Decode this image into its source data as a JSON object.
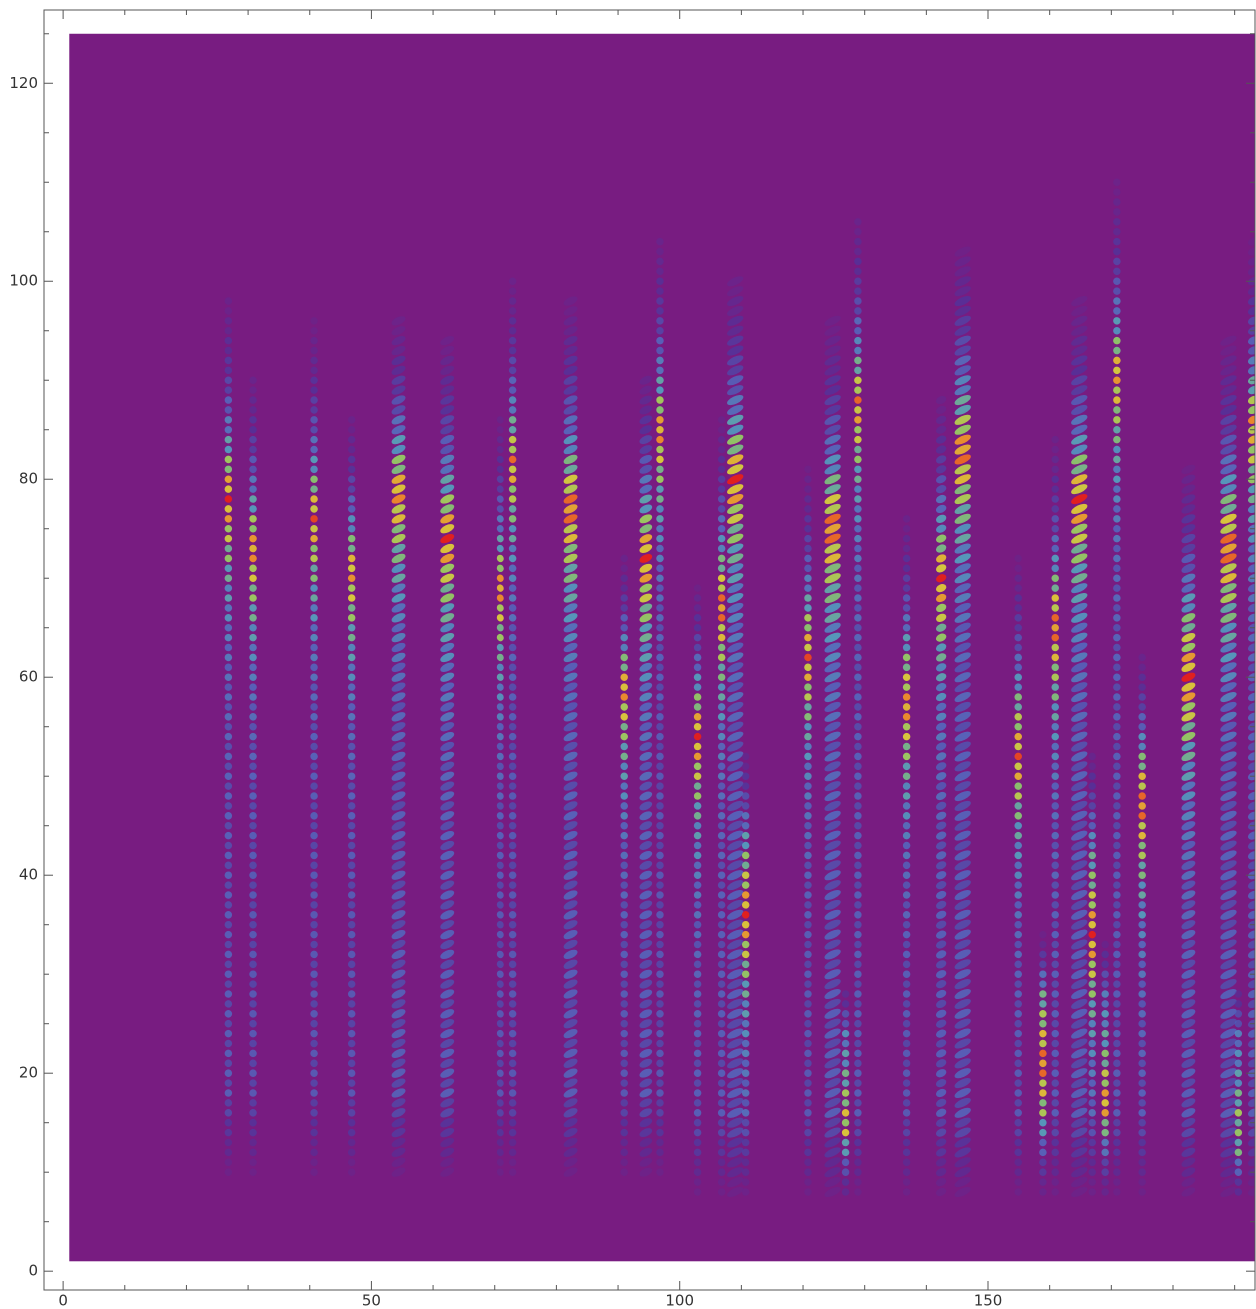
{
  "chart_data": {
    "type": "heatmap",
    "xlim": [
      -3.1,
      193.3
    ],
    "ylim": [
      -1.9,
      127.4
    ],
    "xticks": [
      0,
      50,
      100,
      150
    ],
    "yticks": [
      0,
      20,
      40,
      60,
      80,
      100,
      120
    ],
    "xminorticks": [
      10,
      20,
      30,
      40,
      60,
      70,
      80,
      90,
      110,
      120,
      130,
      140,
      160,
      170,
      180,
      190
    ],
    "yminorticks": [
      5,
      10,
      15,
      25,
      30,
      35,
      45,
      50,
      55,
      65,
      70,
      75,
      85,
      90,
      95,
      105,
      110,
      115,
      125
    ],
    "data_xrange": [
      1,
      193.3
    ],
    "data_yrange": [
      1,
      125
    ],
    "background": "#781c81",
    "colors": [
      "#781c81",
      "#3f3fa8",
      "#4a7fd0",
      "#4fb0c6",
      "#8cc46a",
      "#d8c43c",
      "#e98a2e",
      "#e02020"
    ],
    "streaks": [
      {
        "x": 26.8,
        "y0": 8,
        "y1": 103,
        "peak": 78,
        "width": 1.1,
        "max": 1
      },
      {
        "x": 30.8,
        "y0": 8,
        "y1": 95,
        "peak": 73,
        "width": 1.1,
        "max": 0.95
      },
      {
        "x": 40.7,
        "y0": 8,
        "y1": 100,
        "peak": 76,
        "width": 1.1,
        "max": 0.95
      },
      {
        "x": 46.8,
        "y0": 8,
        "y1": 90,
        "peak": 71,
        "width": 1.1,
        "max": 0.95
      },
      {
        "x": 54.4,
        "y0": 8,
        "y1": 100,
        "peak": 79,
        "width": 2.2,
        "max": 1
      },
      {
        "x": 62.3,
        "y0": 8,
        "y1": 98,
        "peak": 74,
        "width": 2.2,
        "max": 1
      },
      {
        "x": 70.9,
        "y0": 8,
        "y1": 90,
        "peak": 69,
        "width": 1,
        "max": 0.95
      },
      {
        "x": 72.9,
        "y0": 8,
        "y1": 105,
        "peak": 82,
        "width": 1.1,
        "max": 0.95
      },
      {
        "x": 82.3,
        "y0": 8,
        "y1": 102,
        "peak": 77,
        "width": 2.2,
        "max": 1
      },
      {
        "x": 91,
        "y0": 8,
        "y1": 75,
        "peak": 59,
        "width": 1.1,
        "max": 0.95
      },
      {
        "x": 94.5,
        "y0": 8,
        "y1": 95,
        "peak": 72,
        "width": 2,
        "max": 1
      },
      {
        "x": 96.8,
        "y0": 8,
        "y1": 110,
        "peak": 85,
        "width": 1.1,
        "max": 0.95
      },
      {
        "x": 102.9,
        "y0": 6,
        "y1": 72,
        "peak": 54,
        "width": 1.1,
        "max": 1
      },
      {
        "x": 106.8,
        "y0": 6,
        "y1": 90,
        "peak": 67,
        "width": 1.1,
        "max": 1
      },
      {
        "x": 109,
        "y0": 6,
        "y1": 105,
        "peak": 80,
        "width": 2.6,
        "max": 1
      },
      {
        "x": 110.7,
        "y0": 6,
        "y1": 55,
        "peak": 36,
        "width": 1.1,
        "max": 1
      },
      {
        "x": 120.8,
        "y0": 6,
        "y1": 85,
        "peak": 62,
        "width": 1.1,
        "max": 0.95
      },
      {
        "x": 124.8,
        "y0": 6,
        "y1": 100,
        "peak": 75,
        "width": 2.6,
        "max": 1
      },
      {
        "x": 126.9,
        "y0": 6,
        "y1": 30,
        "peak": 14,
        "width": 1.1,
        "max": 0.9
      },
      {
        "x": 128.9,
        "y0": 6,
        "y1": 112,
        "peak": 88,
        "width": 1.1,
        "max": 1
      },
      {
        "x": 136.8,
        "y0": 6,
        "y1": 80,
        "peak": 57,
        "width": 1.1,
        "max": 0.95
      },
      {
        "x": 142.4,
        "y0": 6,
        "y1": 92,
        "peak": 70,
        "width": 1.6,
        "max": 1
      },
      {
        "x": 145.9,
        "y0": 6,
        "y1": 108,
        "peak": 83,
        "width": 2.6,
        "max": 1
      },
      {
        "x": 154.9,
        "y0": 6,
        "y1": 75,
        "peak": 52,
        "width": 1.1,
        "max": 0.95
      },
      {
        "x": 158.9,
        "y0": 6,
        "y1": 35,
        "peak": 21,
        "width": 1.1,
        "max": 1
      },
      {
        "x": 160.9,
        "y0": 6,
        "y1": 88,
        "peak": 65,
        "width": 1.1,
        "max": 1
      },
      {
        "x": 164.8,
        "y0": 6,
        "y1": 102,
        "peak": 78,
        "width": 2.6,
        "max": 1
      },
      {
        "x": 166.9,
        "y0": 6,
        "y1": 55,
        "peak": 34,
        "width": 1.1,
        "max": 1
      },
      {
        "x": 169,
        "y0": 6,
        "y1": 35,
        "peak": 17,
        "width": 1.1,
        "max": 0.9
      },
      {
        "x": 170.9,
        "y0": 6,
        "y1": 115,
        "peak": 91,
        "width": 1.1,
        "max": 1
      },
      {
        "x": 175,
        "y0": 6,
        "y1": 65,
        "peak": 47,
        "width": 1.1,
        "max": 1
      },
      {
        "x": 182.5,
        "y0": 6,
        "y1": 85,
        "peak": 60,
        "width": 2.2,
        "max": 1
      },
      {
        "x": 189,
        "y0": 6,
        "y1": 98,
        "peak": 73,
        "width": 2.6,
        "max": 1
      },
      {
        "x": 190.6,
        "y0": 6,
        "y1": 30,
        "peak": 12,
        "width": 1.1,
        "max": 0.9
      },
      {
        "x": 193,
        "y0": 6,
        "y1": 108,
        "peak": 86,
        "width": 1.6,
        "max": 1
      }
    ]
  }
}
